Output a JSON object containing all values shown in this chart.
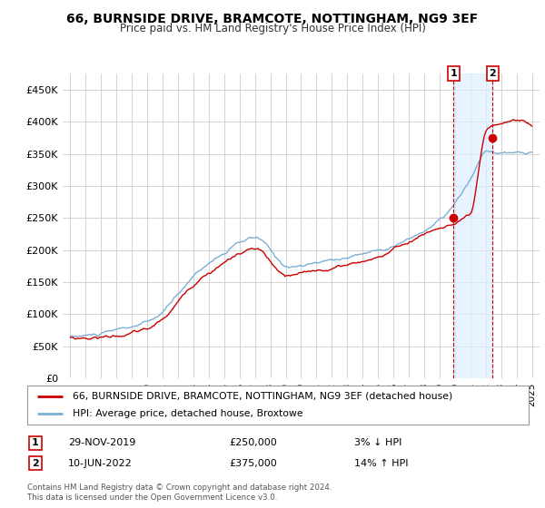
{
  "title": "66, BURNSIDE DRIVE, BRAMCOTE, NOTTINGHAM, NG9 3EF",
  "subtitle": "Price paid vs. HM Land Registry's House Price Index (HPI)",
  "background_color": "#ffffff",
  "chart_bg_color": "#ffffff",
  "grid_color": "#cccccc",
  "hpi_color": "#7bafd4",
  "price_color": "#cc0000",
  "shade_color": "#ddeeff",
  "legend_label_price": "66, BURNSIDE DRIVE, BRAMCOTE, NOTTINGHAM, NG9 3EF (detached house)",
  "legend_label_hpi": "HPI: Average price, detached house, Broxtowe",
  "annotation1_date": "29-NOV-2019",
  "annotation1_price": "£250,000",
  "annotation1_pct": "3% ↓ HPI",
  "annotation2_date": "10-JUN-2022",
  "annotation2_price": "£375,000",
  "annotation2_pct": "14% ↑ HPI",
  "footer": "Contains HM Land Registry data © Crown copyright and database right 2024.\nThis data is licensed under the Open Government Licence v3.0.",
  "ylim": [
    0,
    475000
  ],
  "yticks": [
    0,
    50000,
    100000,
    150000,
    200000,
    250000,
    300000,
    350000,
    400000,
    450000
  ],
  "ytick_labels": [
    "£0",
    "£50K",
    "£100K",
    "£150K",
    "£200K",
    "£250K",
    "£300K",
    "£350K",
    "£400K",
    "£450K"
  ],
  "sale1_x": 2019.917,
  "sale1_y": 250000,
  "sale2_x": 2022.44,
  "sale2_y": 375000,
  "xlim": [
    1994.5,
    2025.5
  ],
  "xticks": [
    1995,
    1996,
    1997,
    1998,
    1999,
    2000,
    2001,
    2002,
    2003,
    2004,
    2005,
    2006,
    2007,
    2008,
    2009,
    2010,
    2011,
    2012,
    2013,
    2014,
    2015,
    2016,
    2017,
    2018,
    2019,
    2020,
    2021,
    2022,
    2023,
    2024,
    2025
  ]
}
